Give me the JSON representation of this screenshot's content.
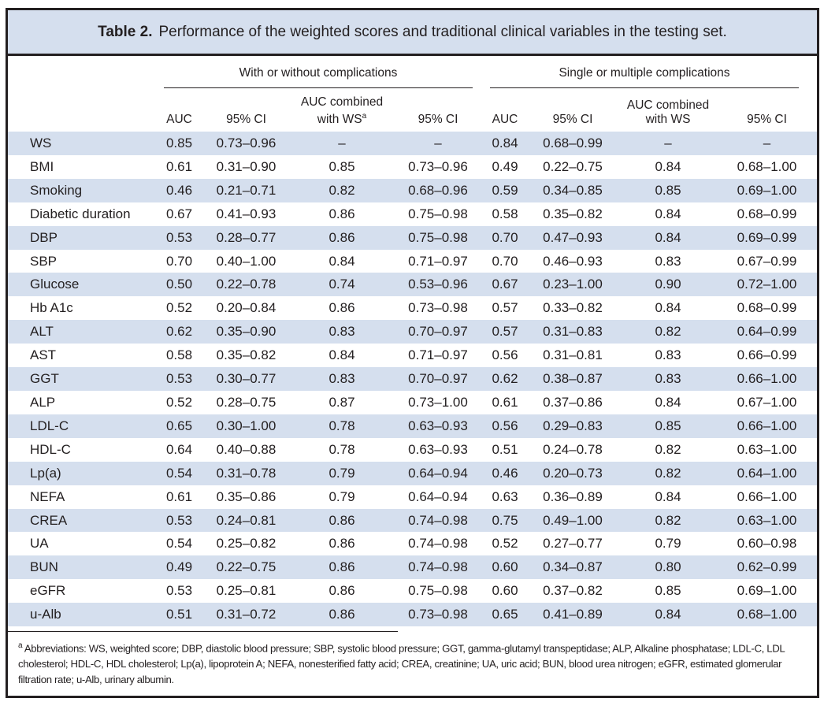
{
  "title": {
    "label": "Table 2.",
    "text": "Performance of the weighted scores and traditional clinical variables in the testing set."
  },
  "groups": [
    "With or without complications",
    "Single or multiple complications"
  ],
  "columns": [
    "AUC",
    "95% CI",
    "AUC combined with WS",
    "95% CI",
    "AUC",
    "95% CI",
    "AUC combined with WS",
    "95% CI"
  ],
  "footnote_marker": "a",
  "rows": [
    [
      "WS",
      "0.85",
      "0.73–0.96",
      "–",
      "–",
      "0.84",
      "0.68–0.99",
      "–",
      "–"
    ],
    [
      "BMI",
      "0.61",
      "0.31–0.90",
      "0.85",
      "0.73–0.96",
      "0.49",
      "0.22–0.75",
      "0.84",
      "0.68–1.00"
    ],
    [
      "Smoking",
      "0.46",
      "0.21–0.71",
      "0.82",
      "0.68–0.96",
      "0.59",
      "0.34–0.85",
      "0.85",
      "0.69–1.00"
    ],
    [
      "Diabetic duration",
      "0.67",
      "0.41–0.93",
      "0.86",
      "0.75–0.98",
      "0.58",
      "0.35–0.82",
      "0.84",
      "0.68–0.99"
    ],
    [
      "DBP",
      "0.53",
      "0.28–0.77",
      "0.86",
      "0.75–0.98",
      "0.70",
      "0.47–0.93",
      "0.84",
      "0.69–0.99"
    ],
    [
      "SBP",
      "0.70",
      "0.40–1.00",
      "0.84",
      "0.71–0.97",
      "0.70",
      "0.46–0.93",
      "0.83",
      "0.67–0.99"
    ],
    [
      "Glucose",
      "0.50",
      "0.22–0.78",
      "0.74",
      "0.53–0.96",
      "0.67",
      "0.23–1.00",
      "0.90",
      "0.72–1.00"
    ],
    [
      "Hb A1c",
      "0.52",
      "0.20–0.84",
      "0.86",
      "0.73–0.98",
      "0.57",
      "0.33–0.82",
      "0.84",
      "0.68–0.99"
    ],
    [
      "ALT",
      "0.62",
      "0.35–0.90",
      "0.83",
      "0.70–0.97",
      "0.57",
      "0.31–0.83",
      "0.82",
      "0.64–0.99"
    ],
    [
      "AST",
      "0.58",
      "0.35–0.82",
      "0.84",
      "0.71–0.97",
      "0.56",
      "0.31–0.81",
      "0.83",
      "0.66–0.99"
    ],
    [
      "GGT",
      "0.53",
      "0.30–0.77",
      "0.83",
      "0.70–0.97",
      "0.62",
      "0.38–0.87",
      "0.83",
      "0.66–1.00"
    ],
    [
      "ALP",
      "0.52",
      "0.28–0.75",
      "0.87",
      "0.73–1.00",
      "0.61",
      "0.37–0.86",
      "0.84",
      "0.67–1.00"
    ],
    [
      "LDL-C",
      "0.65",
      "0.30–1.00",
      "0.78",
      "0.63–0.93",
      "0.56",
      "0.29–0.83",
      "0.85",
      "0.66–1.00"
    ],
    [
      "HDL-C",
      "0.64",
      "0.40–0.88",
      "0.78",
      "0.63–0.93",
      "0.51",
      "0.24–0.78",
      "0.82",
      "0.63–1.00"
    ],
    [
      "Lp(a)",
      "0.54",
      "0.31–0.78",
      "0.79",
      "0.64–0.94",
      "0.46",
      "0.20–0.73",
      "0.82",
      "0.64–1.00"
    ],
    [
      "NEFA",
      "0.61",
      "0.35–0.86",
      "0.79",
      "0.64–0.94",
      "0.63",
      "0.36–0.89",
      "0.84",
      "0.66–1.00"
    ],
    [
      "CREA",
      "0.53",
      "0.24–0.81",
      "0.86",
      "0.74–0.98",
      "0.75",
      "0.49–1.00",
      "0.82",
      "0.63–1.00"
    ],
    [
      "UA",
      "0.54",
      "0.25–0.82",
      "0.86",
      "0.74–0.98",
      "0.52",
      "0.27–0.77",
      "0.79",
      "0.60–0.98"
    ],
    [
      "BUN",
      "0.49",
      "0.22–0.75",
      "0.86",
      "0.74–0.98",
      "0.60",
      "0.34–0.87",
      "0.80",
      "0.62–0.99"
    ],
    [
      "eGFR",
      "0.53",
      "0.25–0.81",
      "0.86",
      "0.75–0.98",
      "0.60",
      "0.37–0.82",
      "0.85",
      "0.69–1.00"
    ],
    [
      "u-Alb",
      "0.51",
      "0.31–0.72",
      "0.86",
      "0.73–0.98",
      "0.65",
      "0.41–0.89",
      "0.84",
      "0.68–1.00"
    ]
  ],
  "footnote": "Abbreviations: WS, weighted score; DBP, diastolic blood pressure; SBP, systolic blood pressure; GGT, gamma-glutamyl transpeptidase; ALP, Alkaline phosphatase; LDL-C, LDL cholesterol; HDL-C, HDL cholesterol; Lp(a), lipoprotein A; NEFA, nonesterified fatty acid; CREA, creatinine; UA, uric acid; BUN, blood urea nitrogen; eGFR, estimated glomerular filtration rate; u-Alb, urinary albumin.",
  "colors": {
    "stripe": "#d5dfee",
    "border": "#231f20"
  }
}
